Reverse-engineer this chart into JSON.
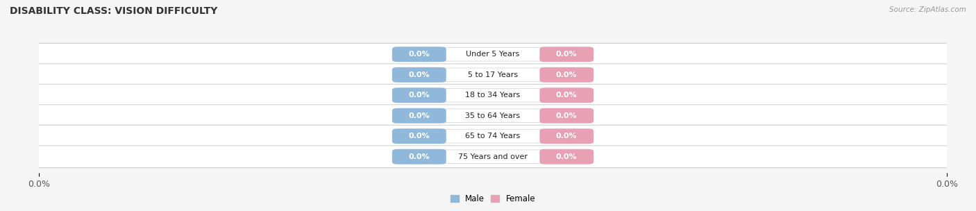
{
  "title": "DISABILITY CLASS: VISION DIFFICULTY",
  "source": "Source: ZipAtlas.com",
  "categories": [
    "Under 5 Years",
    "5 to 17 Years",
    "18 to 34 Years",
    "35 to 64 Years",
    "65 to 74 Years",
    "75 Years and over"
  ],
  "male_values": [
    0.0,
    0.0,
    0.0,
    0.0,
    0.0,
    0.0
  ],
  "female_values": [
    0.0,
    0.0,
    0.0,
    0.0,
    0.0,
    0.0
  ],
  "male_color": "#8fb8db",
  "female_color": "#e8a0b4",
  "bar_bg_color": "#e5e5e5",
  "bar_border_color": "#d0d0d0",
  "title_fontsize": 10,
  "label_fontsize": 8,
  "tick_fontsize": 9,
  "figsize": [
    14.06,
    3.04
  ],
  "dpi": 100,
  "background_color": "#f5f5f5",
  "legend_male": "Male",
  "legend_female": "Female"
}
